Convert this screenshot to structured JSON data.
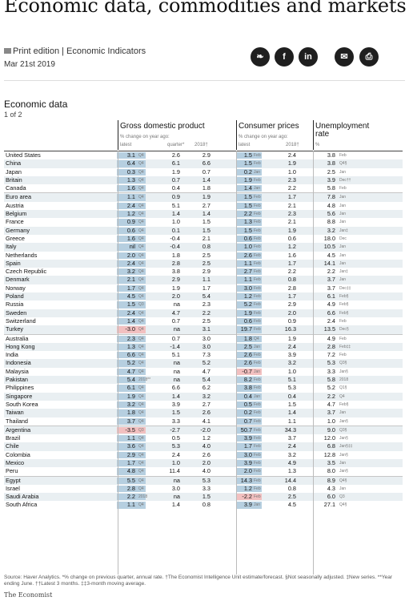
{
  "page_title": "Economic data, commodities and markets",
  "edition": "Print edition | Economic Indicators",
  "date": "Mar 21st 2019",
  "share": [
    {
      "name": "twitter-icon",
      "glyph": "❧"
    },
    {
      "name": "facebook-icon",
      "glyph": "f"
    },
    {
      "name": "linkedin-icon",
      "glyph": "in"
    },
    {
      "name": "mail-icon",
      "glyph": "✉"
    },
    {
      "name": "print-icon",
      "glyph": "⎙"
    }
  ],
  "section_title": "Economic data",
  "section_sub": "1 of 2",
  "groups": {
    "gdp": {
      "title": "Gross domestic product",
      "sub": "% change on year ago:",
      "col1": "latest",
      "col2": "quarter*",
      "col3": "2018†"
    },
    "cpi": {
      "title": "Consumer prices",
      "sub": "% change on year ago:",
      "col1": "latest",
      "col3": "2018†"
    },
    "unemp": {
      "title": "Unemployment rate",
      "sub": "%"
    }
  },
  "rows": [
    {
      "c": "United States",
      "g": "3.1",
      "gq": "Q4",
      "q": "2.6",
      "g18": "2.9",
      "p": "1.5",
      "pm": "Feb",
      "p18": "2.4",
      "u": "3.8",
      "um": "Feb"
    },
    {
      "c": "China",
      "g": "6.4",
      "gq": "Q4",
      "q": "6.1",
      "g18": "6.6",
      "p": "1.5",
      "pm": "Feb",
      "p18": "1.9",
      "u": "3.8",
      "um": "Q4§"
    },
    {
      "c": "Japan",
      "g": "0.3",
      "gq": "Q4",
      "q": "1.9",
      "g18": "0.7",
      "p": "0.2",
      "pm": "Jan",
      "p18": "1.0",
      "u": "2.5",
      "um": "Jan"
    },
    {
      "c": "Britain",
      "g": "1.3",
      "gq": "Q4",
      "q": "0.7",
      "g18": "1.4",
      "p": "1.9",
      "pm": "Feb",
      "p18": "2.3",
      "u": "3.9",
      "um": "Dec††"
    },
    {
      "c": "Canada",
      "g": "1.6",
      "gq": "Q4",
      "q": "0.4",
      "g18": "1.8",
      "p": "1.4",
      "pm": "Jan",
      "p18": "2.2",
      "u": "5.8",
      "um": "Feb"
    },
    {
      "c": "Euro area",
      "g": "1.1",
      "gq": "Q4",
      "q": "0.9",
      "g18": "1.9",
      "p": "1.5",
      "pm": "Feb",
      "p18": "1.7",
      "u": "7.8",
      "um": "Jan"
    },
    {
      "c": "Austria",
      "g": "2.4",
      "gq": "Q4",
      "q": "5.1",
      "g18": "2.7",
      "p": "1.5",
      "pm": "Feb",
      "p18": "2.1",
      "u": "4.8",
      "um": "Jan"
    },
    {
      "c": "Belgium",
      "g": "1.2",
      "gq": "Q4",
      "q": "1.4",
      "g18": "1.4",
      "p": "2.2",
      "pm": "Feb",
      "p18": "2.3",
      "u": "5.6",
      "um": "Jan"
    },
    {
      "c": "France",
      "g": "0.9",
      "gq": "Q4",
      "q": "1.0",
      "g18": "1.5",
      "p": "1.3",
      "pm": "Feb",
      "p18": "2.1",
      "u": "8.8",
      "um": "Jan"
    },
    {
      "c": "Germany",
      "g": "0.6",
      "gq": "Q4",
      "q": "0.1",
      "g18": "1.5",
      "p": "1.5",
      "pm": "Feb",
      "p18": "1.9",
      "u": "3.2",
      "um": "Jan‡"
    },
    {
      "c": "Greece",
      "g": "1.6",
      "gq": "Q4",
      "q": "-0.4",
      "g18": "2.1",
      "p": "0.6",
      "pm": "Feb",
      "p18": "0.6",
      "u": "18.0",
      "um": "Dec"
    },
    {
      "c": "Italy",
      "g": "nil",
      "gq": "Q4",
      "q": "-0.4",
      "g18": "0.8",
      "p": "1.0",
      "pm": "Feb",
      "p18": "1.2",
      "u": "10.5",
      "um": "Jan"
    },
    {
      "c": "Netherlands",
      "g": "2.0",
      "gq": "Q4",
      "q": "1.8",
      "g18": "2.5",
      "p": "2.6",
      "pm": "Feb",
      "p18": "1.6",
      "u": "4.5",
      "um": "Jan"
    },
    {
      "c": "Spain",
      "g": "2.4",
      "gq": "Q4",
      "q": "2.8",
      "g18": "2.5",
      "p": "1.1",
      "pm": "Feb",
      "p18": "1.7",
      "u": "14.1",
      "um": "Jan"
    },
    {
      "c": "Czech Republic",
      "g": "3.2",
      "gq": "Q4",
      "q": "3.8",
      "g18": "2.9",
      "p": "2.7",
      "pm": "Feb",
      "p18": "2.2",
      "u": "2.2",
      "um": "Jan‡"
    },
    {
      "c": "Denmark",
      "g": "2.1",
      "gq": "Q4",
      "q": "2.9",
      "g18": "1.1",
      "p": "1.1",
      "pm": "Feb",
      "p18": "0.8",
      "u": "3.7",
      "um": "Jan"
    },
    {
      "c": "Norway",
      "g": "1.7",
      "gq": "Q4",
      "q": "1.9",
      "g18": "1.7",
      "p": "3.0",
      "pm": "Feb",
      "p18": "2.8",
      "u": "3.7",
      "um": "Dec‡‡"
    },
    {
      "c": "Poland",
      "g": "4.5",
      "gq": "Q4",
      "q": "2.0",
      "g18": "5.4",
      "p": "1.2",
      "pm": "Feb",
      "p18": "1.7",
      "u": "6.1",
      "um": "Feb§"
    },
    {
      "c": "Russia",
      "g": "1.5",
      "gq": "Q3",
      "q": "na",
      "g18": "2.3",
      "p": "5.2",
      "pm": "Feb",
      "p18": "2.9",
      "u": "4.9",
      "um": "Feb§"
    },
    {
      "c": "Sweden",
      "g": "2.4",
      "gq": "Q4",
      "q": "4.7",
      "g18": "2.2",
      "p": "1.9",
      "pm": "Feb",
      "p18": "2.0",
      "u": "6.6",
      "um": "Feb§"
    },
    {
      "c": "Switzerland",
      "g": "1.4",
      "gq": "Q4",
      "q": "0.7",
      "g18": "2.5",
      "p": "0.6",
      "pm": "Feb",
      "p18": "0.9",
      "u": "2.4",
      "um": "Feb"
    },
    {
      "c": "Turkey",
      "g": "-3.0",
      "gq": "Q4",
      "q": "na",
      "g18": "3.1",
      "p": "19.7",
      "pm": "Feb",
      "p18": "16.3",
      "u": "13.5",
      "um": "Dec§"
    },
    {
      "c": "Australia",
      "g": "2.3",
      "gq": "Q4",
      "q": "0.7",
      "g18": "3.0",
      "p": "1.8",
      "pm": "Q4",
      "p18": "1.9",
      "u": "4.9",
      "um": "Feb"
    },
    {
      "c": "Hong Kong",
      "g": "1.3",
      "gq": "Q4",
      "q": "-1.4",
      "g18": "3.0",
      "p": "2.5",
      "pm": "Jan",
      "p18": "2.4",
      "u": "2.8",
      "um": "Feb‡‡"
    },
    {
      "c": "India",
      "g": "6.6",
      "gq": "Q4",
      "q": "5.1",
      "g18": "7.3",
      "p": "2.6",
      "pm": "Feb",
      "p18": "3.9",
      "u": "7.2",
      "um": "Feb"
    },
    {
      "c": "Indonesia",
      "g": "5.2",
      "gq": "Q4",
      "q": "na",
      "g18": "5.2",
      "p": "2.6",
      "pm": "Feb",
      "p18": "3.2",
      "u": "5.3",
      "um": "Q3§"
    },
    {
      "c": "Malaysia",
      "g": "4.7",
      "gq": "Q4",
      "q": "na",
      "g18": "4.7",
      "p": "-0.7",
      "pm": "Jan",
      "p18": "1.0",
      "u": "3.3",
      "um": "Jan§"
    },
    {
      "c": "Pakistan",
      "g": "5.4",
      "gq": "2018**",
      "q": "na",
      "g18": "5.4",
      "p": "8.2",
      "pm": "Feb",
      "p18": "5.1",
      "u": "5.8",
      "um": "2018"
    },
    {
      "c": "Philippines",
      "g": "6.1",
      "gq": "Q4",
      "q": "6.6",
      "g18": "6.2",
      "p": "3.8",
      "pm": "Feb",
      "p18": "5.3",
      "u": "5.2",
      "um": "Q1§"
    },
    {
      "c": "Singapore",
      "g": "1.9",
      "gq": "Q4",
      "q": "1.4",
      "g18": "3.2",
      "p": "0.4",
      "pm": "Jan",
      "p18": "0.4",
      "u": "2.2",
      "um": "Q4"
    },
    {
      "c": "South Korea",
      "g": "3.2",
      "gq": "Q4",
      "q": "3.9",
      "g18": "2.7",
      "p": "0.5",
      "pm": "Feb",
      "p18": "1.5",
      "u": "4.7",
      "um": "Feb§"
    },
    {
      "c": "Taiwan",
      "g": "1.8",
      "gq": "Q4",
      "q": "1.5",
      "g18": "2.6",
      "p": "0.2",
      "pm": "Feb",
      "p18": "1.4",
      "u": "3.7",
      "um": "Jan"
    },
    {
      "c": "Thailand",
      "g": "3.7",
      "gq": "Q4",
      "q": "3.3",
      "g18": "4.1",
      "p": "0.7",
      "pm": "Feb",
      "p18": "1.1",
      "u": "1.0",
      "um": "Jan§"
    },
    {
      "c": "Argentina",
      "g": "-3.5",
      "gq": "Q3",
      "q": "-2.7",
      "g18": "-2.0",
      "p": "50.7",
      "pm": "Feb",
      "p18": "34.3",
      "u": "9.0",
      "um": "Q3§"
    },
    {
      "c": "Brazil",
      "g": "1.1",
      "gq": "Q4",
      "q": "0.5",
      "g18": "1.2",
      "p": "3.9",
      "pm": "Feb",
      "p18": "3.7",
      "u": "12.0",
      "um": "Jan§"
    },
    {
      "c": "Chile",
      "g": "3.6",
      "gq": "Q4",
      "q": "5.3",
      "g18": "4.0",
      "p": "1.7",
      "pm": "Feb",
      "p18": "2.4",
      "u": "6.8",
      "um": "Jan§‡‡"
    },
    {
      "c": "Colombia",
      "g": "2.9",
      "gq": "Q4",
      "q": "2.4",
      "g18": "2.6",
      "p": "3.0",
      "pm": "Feb",
      "p18": "3.2",
      "u": "12.8",
      "um": "Jan§"
    },
    {
      "c": "Mexico",
      "g": "1.7",
      "gq": "Q4",
      "q": "1.0",
      "g18": "2.0",
      "p": "3.9",
      "pm": "Feb",
      "p18": "4.9",
      "u": "3.5",
      "um": "Jan"
    },
    {
      "c": "Peru",
      "g": "4.8",
      "gq": "Q4",
      "q": "11.4",
      "g18": "4.0",
      "p": "2.0",
      "pm": "Feb",
      "p18": "1.3",
      "u": "8.0",
      "um": "Jan§"
    },
    {
      "c": "Egypt",
      "g": "5.5",
      "gq": "Q4",
      "q": "na",
      "g18": "5.3",
      "p": "14.3",
      "pm": "Feb",
      "p18": "14.4",
      "u": "8.9",
      "um": "Q4§"
    },
    {
      "c": "Israel",
      "g": "2.8",
      "gq": "Q4",
      "q": "3.0",
      "g18": "3.3",
      "p": "1.2",
      "pm": "Feb",
      "p18": "0.8",
      "u": "4.3",
      "um": "Jan"
    },
    {
      "c": "Saudi Arabia",
      "g": "2.2",
      "gq": "2018",
      "q": "na",
      "g18": "1.5",
      "p": "-2.2",
      "pm": "Feb",
      "p18": "2.5",
      "u": "6.0",
      "um": "Q3"
    },
    {
      "c": "South Africa",
      "g": "1.1",
      "gq": "Q4",
      "q": "1.4",
      "g18": "0.8",
      "p": "3.9",
      "pm": "Jan",
      "p18": "4.5",
      "u": "27.1",
      "um": "Q4§"
    }
  ],
  "footnote": "Source: Haver Analytics. *% change on previous quarter, annual rate. †The Economist Intelligence Unit estimate/forecast. §Not seasonally adjusted. ‡New series. **Year ending June. ††Latest 3 months. ‡‡3-month moving average.",
  "brand": "The Economist"
}
